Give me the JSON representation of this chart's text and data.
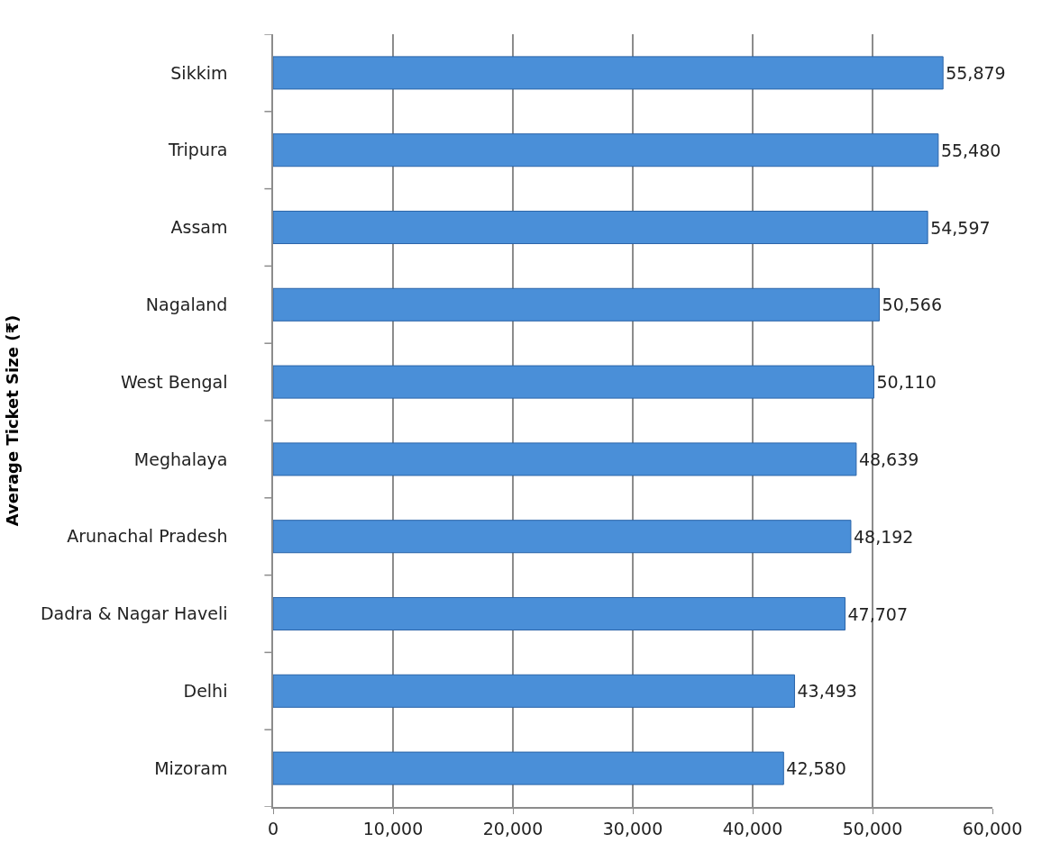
{
  "chart_data": {
    "type": "bar",
    "orientation": "horizontal",
    "ylabel": "Average Ticket Size (₹)",
    "categories": [
      "Sikkim",
      "Tripura",
      "Assam",
      "Nagaland",
      "West Bengal",
      "Meghalaya",
      "Arunachal Pradesh",
      "Dadra & Nagar Haveli",
      "Delhi",
      "Mizoram"
    ],
    "values": [
      55879,
      55480,
      54597,
      50566,
      50110,
      48639,
      48192,
      47707,
      43493,
      42580
    ],
    "value_labels": [
      "55,879",
      "55,480",
      "54,597",
      "50,566",
      "50,110",
      "48,639",
      "48,192",
      "47,707",
      "43,493",
      "42,580"
    ],
    "color": "#4a8fd8",
    "xlim": [
      0,
      60000
    ],
    "xticks": [
      0,
      {
        "value": 10000,
        "label": "10,000"
      },
      {
        "value": 20000,
        "label": "20,000"
      },
      {
        "value": 30000,
        "label": "30,000"
      },
      {
        "value": 40000,
        "label": "40,000"
      },
      {
        "value": 50000,
        "label": "50,000"
      },
      {
        "value": 60000,
        "label": "60,000"
      }
    ],
    "grid": "x"
  }
}
